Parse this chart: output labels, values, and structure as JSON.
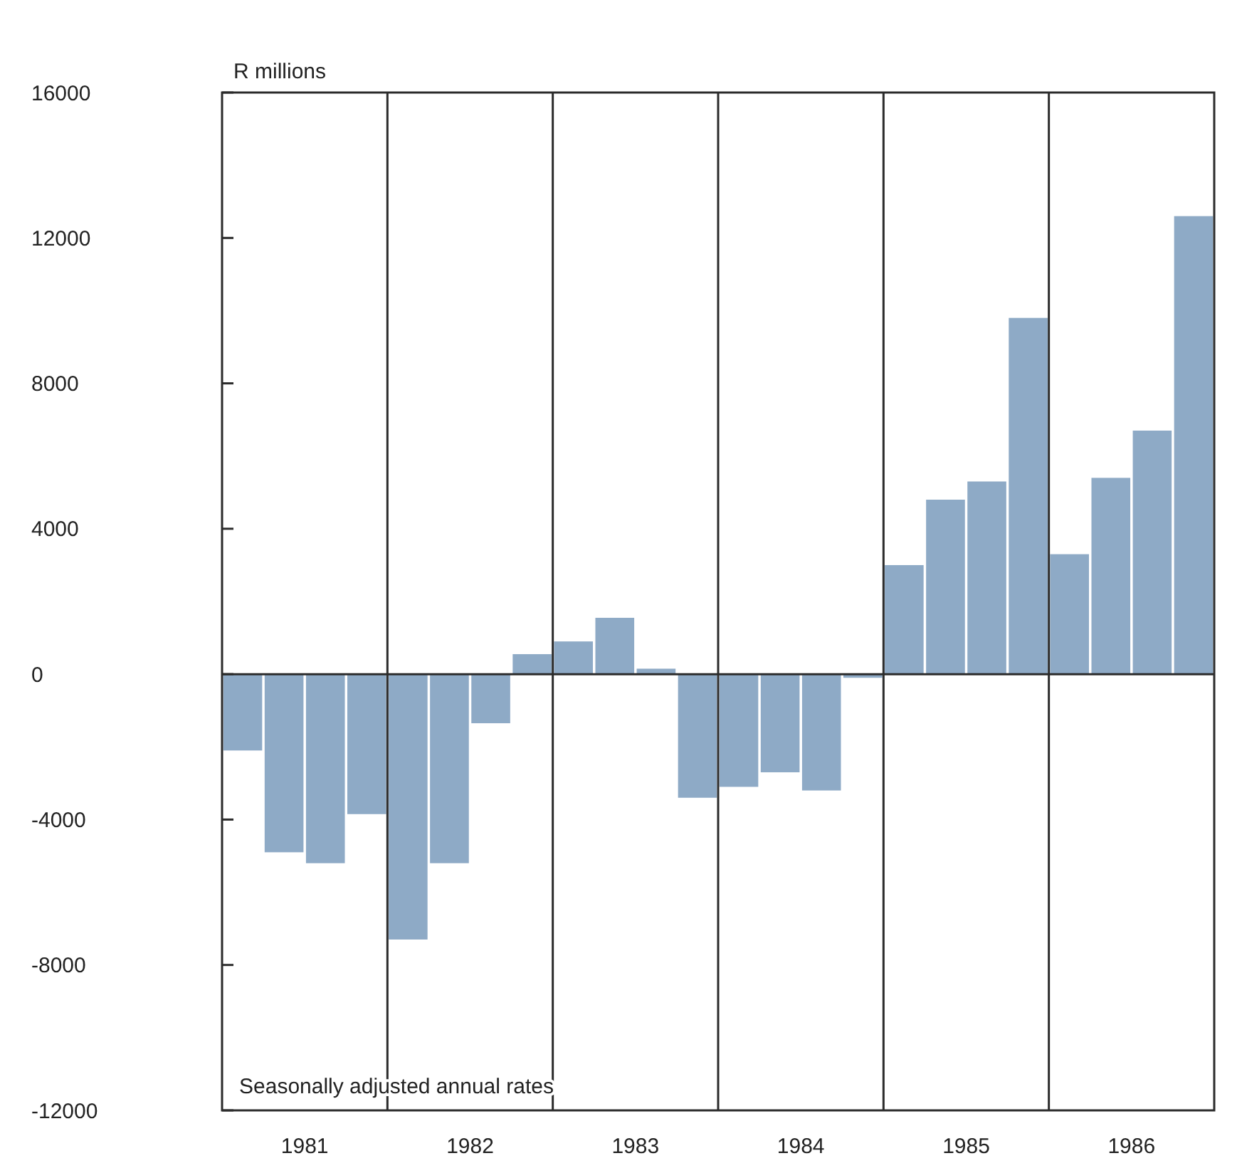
{
  "chart_data": {
    "type": "bar",
    "ylabel": "R millions",
    "categories": [
      "1981",
      "1982",
      "1983",
      "1984",
      "1985",
      "1986"
    ],
    "series": [
      {
        "color": "#8eaac6",
        "values": [
          -2100,
          -7300,
          900,
          -3100,
          3000,
          3300
        ]
      },
      {
        "color": "#8eaac6",
        "values": [
          -4900,
          -5200,
          1550,
          -2700,
          4800,
          5400
        ]
      },
      {
        "color": "#8eaac6",
        "values": [
          -5200,
          -1350,
          150,
          -3200,
          5300,
          6700
        ]
      },
      {
        "color": "#8eaac6",
        "values": [
          -3850,
          550,
          -3400,
          -100,
          9800,
          12600
        ]
      }
    ],
    "ylim": [
      -12000,
      16000
    ],
    "yticks": [
      -12000,
      -8000,
      -4000,
      0,
      4000,
      8000,
      12000,
      16000
    ],
    "annotations": [
      "Seasonally adjusted annual rates"
    ]
  }
}
